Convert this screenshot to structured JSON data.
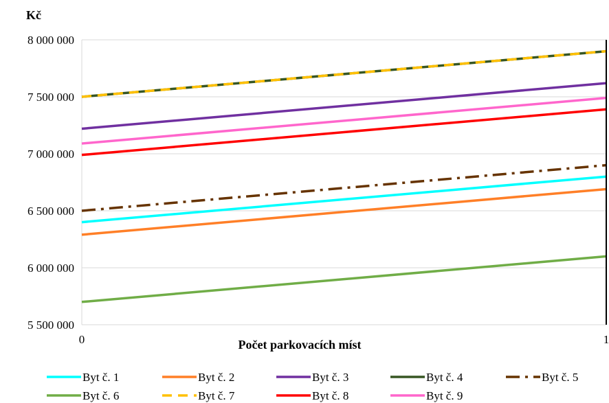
{
  "chart_data": {
    "type": "line",
    "title": "",
    "xlabel": "Počet parkovacích míst",
    "ylabel": "Kč",
    "x": [
      0,
      1
    ],
    "x_ticks": [
      "0",
      "1"
    ],
    "ylim": [
      5500000,
      8000000
    ],
    "y_ticks": [
      {
        "value": 5500000,
        "label": "5 500 000"
      },
      {
        "value": 6000000,
        "label": "6 000 000"
      },
      {
        "value": 6500000,
        "label": "6 500 000"
      },
      {
        "value": 7000000,
        "label": "7 000 000"
      },
      {
        "value": 7500000,
        "label": "7 500 000"
      },
      {
        "value": 8000000,
        "label": "8 000 000"
      }
    ],
    "grid": "horizontal",
    "legend_position": "bottom",
    "series": [
      {
        "name": "Byt č. 1",
        "values": [
          6400000,
          6800000
        ],
        "color": "#00FFFF",
        "dash": "solid"
      },
      {
        "name": "Byt č. 2",
        "values": [
          6290000,
          6690000
        ],
        "color": "#FF7F27",
        "dash": "solid"
      },
      {
        "name": "Byt č. 3",
        "values": [
          7220000,
          7620000
        ],
        "color": "#7030A0",
        "dash": "solid"
      },
      {
        "name": "Byt č. 4",
        "values": [
          7500000,
          7900000
        ],
        "color": "#375623",
        "dash": "solid"
      },
      {
        "name": "Byt č. 5",
        "values": [
          6500000,
          6900000
        ],
        "color": "#663300",
        "dash": "dashdot"
      },
      {
        "name": "Byt č. 6",
        "values": [
          5700000,
          6100000
        ],
        "color": "#70AD47",
        "dash": "solid"
      },
      {
        "name": "Byt č. 7",
        "values": [
          7500000,
          7900000
        ],
        "color": "#FFC000",
        "dash": "dash"
      },
      {
        "name": "Byt č. 8",
        "values": [
          6990000,
          7390000
        ],
        "color": "#FF0000",
        "dash": "solid"
      },
      {
        "name": "Byt č. 9",
        "values": [
          7090000,
          7490000
        ],
        "color": "#FF66CC",
        "dash": "solid"
      }
    ]
  }
}
